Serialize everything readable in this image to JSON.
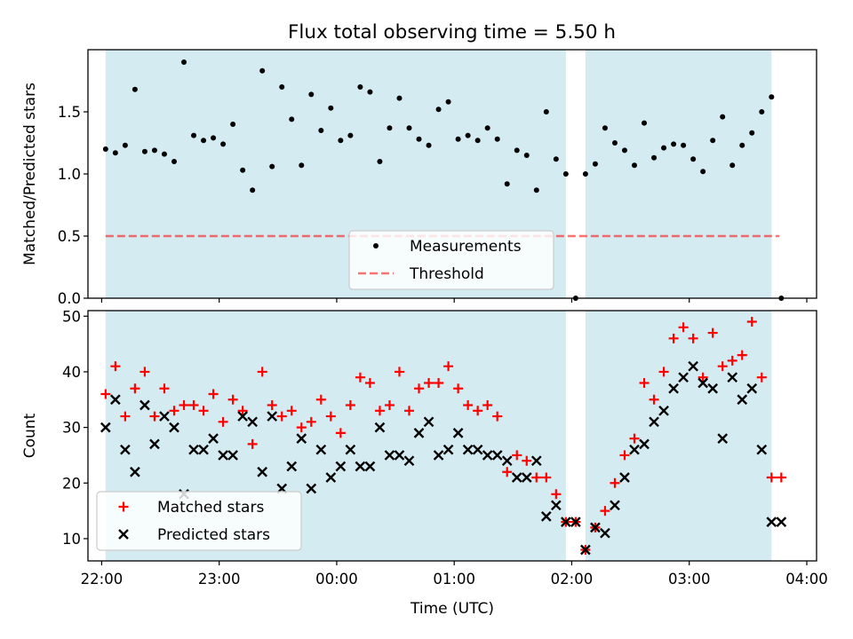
{
  "title": "Flux total observing time = 5.50 h",
  "colors": {
    "shade": "#add8e6",
    "threshold": "#ff0000",
    "matched": "#ff0000",
    "predicted": "#000000",
    "measurement": "#000000"
  },
  "chart_data": [
    {
      "type": "scatter",
      "ylabel": "Matched/Predicted stars",
      "ylim": [
        0,
        2.0
      ],
      "yticks": [
        0.0,
        0.5,
        1.0,
        1.5
      ],
      "ytick_labels": [
        "0.0",
        "0.5",
        "1.0",
        "1.5"
      ],
      "xlim": [
        "21:53",
        "04:05"
      ],
      "xticks": [
        "22:00",
        "23:00",
        "00:00",
        "01:00",
        "02:00",
        "03:00",
        "04:00"
      ],
      "shaded_intervals": [
        [
          "22:02",
          "01:57"
        ],
        [
          "02:07",
          "03:42"
        ]
      ],
      "legend": {
        "position": "lower center",
        "entries": [
          "Measurements",
          "Threshold"
        ]
      },
      "threshold": {
        "name": "Threshold",
        "value": 0.5,
        "x": [
          "22:02",
          "03:46"
        ]
      },
      "series": [
        {
          "name": "Measurements",
          "x": [
            "22:02",
            "22:07",
            "22:12",
            "22:17",
            "22:22",
            "22:27",
            "22:32",
            "22:37",
            "22:42",
            "22:47",
            "22:52",
            "22:57",
            "23:02",
            "23:07",
            "23:12",
            "23:17",
            "23:22",
            "23:27",
            "23:32",
            "23:37",
            "23:42",
            "23:47",
            "23:52",
            "23:57",
            "00:02",
            "00:07",
            "00:12",
            "00:17",
            "00:22",
            "00:27",
            "00:32",
            "00:37",
            "00:42",
            "00:47",
            "00:52",
            "00:57",
            "01:02",
            "01:07",
            "01:12",
            "01:17",
            "01:22",
            "01:27",
            "01:32",
            "01:37",
            "01:42",
            "01:47",
            "01:52",
            "01:57",
            "02:02",
            "02:07",
            "02:12",
            "02:17",
            "02:22",
            "02:27",
            "02:32",
            "02:37",
            "02:42",
            "02:47",
            "02:52",
            "02:57",
            "03:02",
            "03:07",
            "03:12",
            "03:17",
            "03:22",
            "03:27",
            "03:32",
            "03:37",
            "03:42",
            "03:47"
          ],
          "y": [
            1.2,
            1.17,
            1.23,
            1.68,
            1.18,
            1.19,
            1.16,
            1.1,
            1.9,
            1.31,
            1.27,
            1.29,
            1.24,
            1.4,
            1.03,
            0.87,
            1.83,
            1.06,
            1.7,
            1.44,
            1.07,
            1.64,
            1.35,
            1.53,
            1.27,
            1.31,
            1.7,
            1.66,
            1.1,
            1.37,
            1.61,
            1.37,
            1.28,
            1.23,
            1.52,
            1.58,
            1.28,
            1.31,
            1.27,
            1.37,
            1.28,
            0.92,
            1.19,
            1.15,
            0.87,
            1.5,
            1.12,
            1.0,
            0.0,
            1.0,
            1.08,
            1.37,
            1.25,
            1.19,
            1.07,
            1.41,
            1.13,
            1.21,
            1.24,
            1.23,
            1.12,
            1.02,
            1.27,
            1.46,
            1.07,
            1.23,
            1.33,
            1.5,
            1.62,
            0.0
          ]
        }
      ]
    },
    {
      "type": "scatter",
      "xlabel": "Time (UTC)",
      "ylabel": "Count",
      "ylim": [
        6,
        51
      ],
      "yticks": [
        10,
        20,
        30,
        40,
        50
      ],
      "ytick_labels": [
        "10",
        "20",
        "30",
        "40",
        "50"
      ],
      "xlim": [
        "21:53",
        "04:05"
      ],
      "xticks": [
        "22:00",
        "23:00",
        "00:00",
        "01:00",
        "02:00",
        "03:00",
        "04:00"
      ],
      "xtick_labels": [
        "22:00",
        "23:00",
        "00:00",
        "01:00",
        "02:00",
        "03:00",
        "04:00"
      ],
      "shaded_intervals": [
        [
          "22:02",
          "01:57"
        ],
        [
          "02:07",
          "03:42"
        ]
      ],
      "legend": {
        "position": "lower left",
        "entries": [
          "Matched stars",
          "Predicted stars"
        ]
      },
      "series": [
        {
          "name": "Matched stars",
          "x": [
            "22:02",
            "22:07",
            "22:12",
            "22:17",
            "22:22",
            "22:27",
            "22:32",
            "22:37",
            "22:42",
            "22:47",
            "22:52",
            "22:57",
            "23:02",
            "23:07",
            "23:12",
            "23:17",
            "23:22",
            "23:27",
            "23:32",
            "23:37",
            "23:42",
            "23:47",
            "23:52",
            "23:57",
            "00:02",
            "00:07",
            "00:12",
            "00:17",
            "00:22",
            "00:27",
            "00:32",
            "00:37",
            "00:42",
            "00:47",
            "00:52",
            "00:57",
            "01:02",
            "01:07",
            "01:12",
            "01:17",
            "01:22",
            "01:27",
            "01:32",
            "01:37",
            "01:42",
            "01:47",
            "01:52",
            "01:57",
            "02:02",
            "02:07",
            "02:12",
            "02:17",
            "02:22",
            "02:27",
            "02:32",
            "02:37",
            "02:42",
            "02:47",
            "02:52",
            "02:57",
            "03:02",
            "03:07",
            "03:12",
            "03:17",
            "03:22",
            "03:27",
            "03:32",
            "03:37",
            "03:42",
            "03:47"
          ],
          "y": [
            36,
            41,
            32,
            37,
            40,
            32,
            37,
            33,
            34,
            34,
            33,
            36,
            31,
            35,
            33,
            27,
            40,
            34,
            32,
            33,
            30,
            31,
            35,
            32,
            29,
            34,
            39,
            38,
            33,
            34,
            40,
            33,
            37,
            38,
            38,
            41,
            37,
            34,
            33,
            34,
            32,
            22,
            25,
            24,
            21,
            21,
            18,
            13,
            13,
            8,
            12,
            15,
            20,
            25,
            28,
            38,
            35,
            40,
            46,
            48,
            46,
            39,
            47,
            41,
            42,
            43,
            49,
            39,
            21,
            21
          ]
        },
        {
          "name": "Predicted stars",
          "x": [
            "22:02",
            "22:07",
            "22:12",
            "22:17",
            "22:22",
            "22:27",
            "22:32",
            "22:37",
            "22:42",
            "22:47",
            "22:52",
            "22:57",
            "23:02",
            "23:07",
            "23:12",
            "23:17",
            "23:22",
            "23:27",
            "23:32",
            "23:37",
            "23:42",
            "23:47",
            "23:52",
            "23:57",
            "00:02",
            "00:07",
            "00:12",
            "00:17",
            "00:22",
            "00:27",
            "00:32",
            "00:37",
            "00:42",
            "00:47",
            "00:52",
            "00:57",
            "01:02",
            "01:07",
            "01:12",
            "01:17",
            "01:22",
            "01:27",
            "01:32",
            "01:37",
            "01:42",
            "01:47",
            "01:52",
            "01:57",
            "02:02",
            "02:07",
            "02:12",
            "02:17",
            "02:22",
            "02:27",
            "02:32",
            "02:37",
            "02:42",
            "02:47",
            "02:52",
            "02:57",
            "03:02",
            "03:07",
            "03:12",
            "03:17",
            "03:22",
            "03:27",
            "03:32",
            "03:37",
            "03:42",
            "03:47"
          ],
          "y": [
            30,
            35,
            26,
            22,
            34,
            27,
            32,
            30,
            18,
            26,
            26,
            28,
            25,
            25,
            32,
            31,
            22,
            32,
            19,
            23,
            28,
            19,
            26,
            21,
            23,
            26,
            23,
            23,
            30,
            25,
            25,
            24,
            29,
            31,
            25,
            26,
            29,
            26,
            26,
            25,
            25,
            24,
            21,
            21,
            24,
            14,
            16,
            13,
            13,
            8,
            12,
            11,
            16,
            21,
            26,
            27,
            31,
            33,
            37,
            39,
            41,
            38,
            37,
            28,
            39,
            35,
            37,
            26,
            13,
            13
          ]
        }
      ]
    }
  ]
}
